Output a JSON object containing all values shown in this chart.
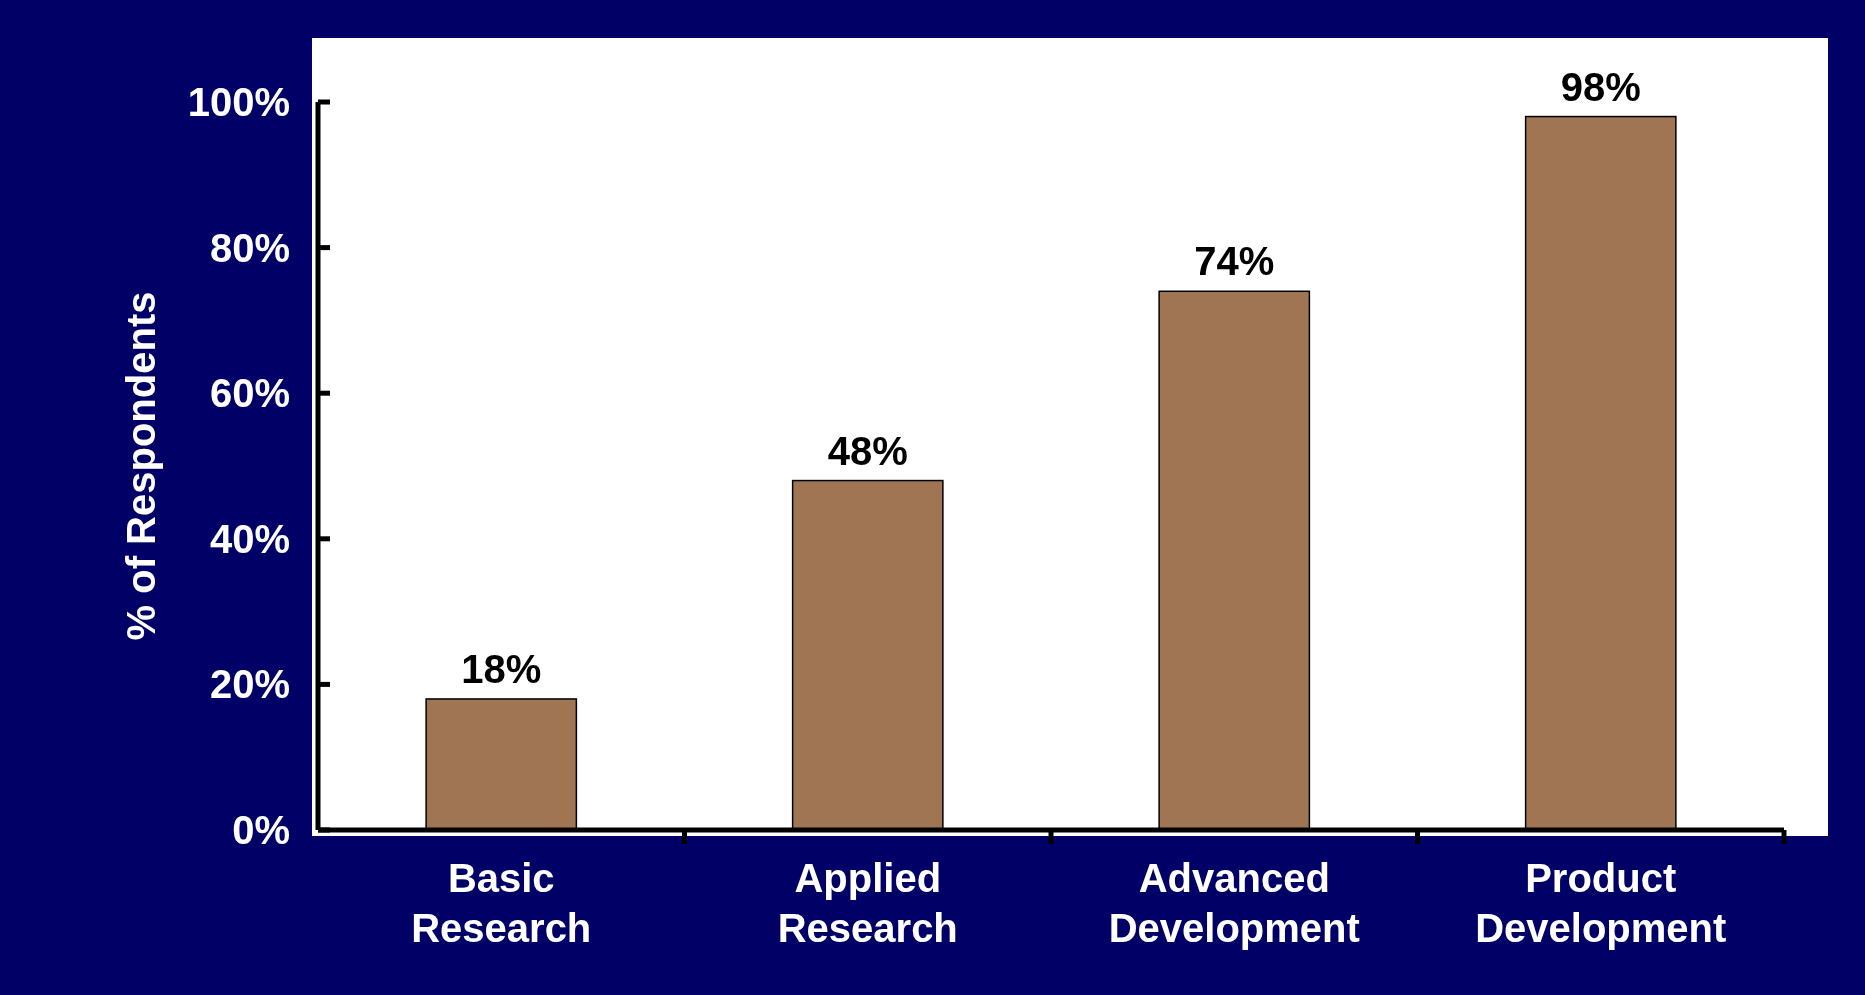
{
  "chart_data": {
    "type": "bar",
    "ylabel": "% of Respondents",
    "categories": [
      "Basic Research",
      "Applied Research",
      "Advanced Development",
      "Product Development"
    ],
    "values": [
      18,
      48,
      74,
      98
    ],
    "value_labels": [
      "18%",
      "48%",
      "74%",
      "98%"
    ],
    "color": "#a07553",
    "ylim": [
      0,
      100
    ],
    "yticks": [
      {
        "value": 0,
        "label": "0%"
      },
      {
        "value": 20,
        "label": "20%"
      },
      {
        "value": 40,
        "label": "40%"
      },
      {
        "value": 60,
        "label": "60%"
      },
      {
        "value": 80,
        "label": "80%"
      },
      {
        "value": 100,
        "label": "100%"
      }
    ],
    "grid": false
  }
}
